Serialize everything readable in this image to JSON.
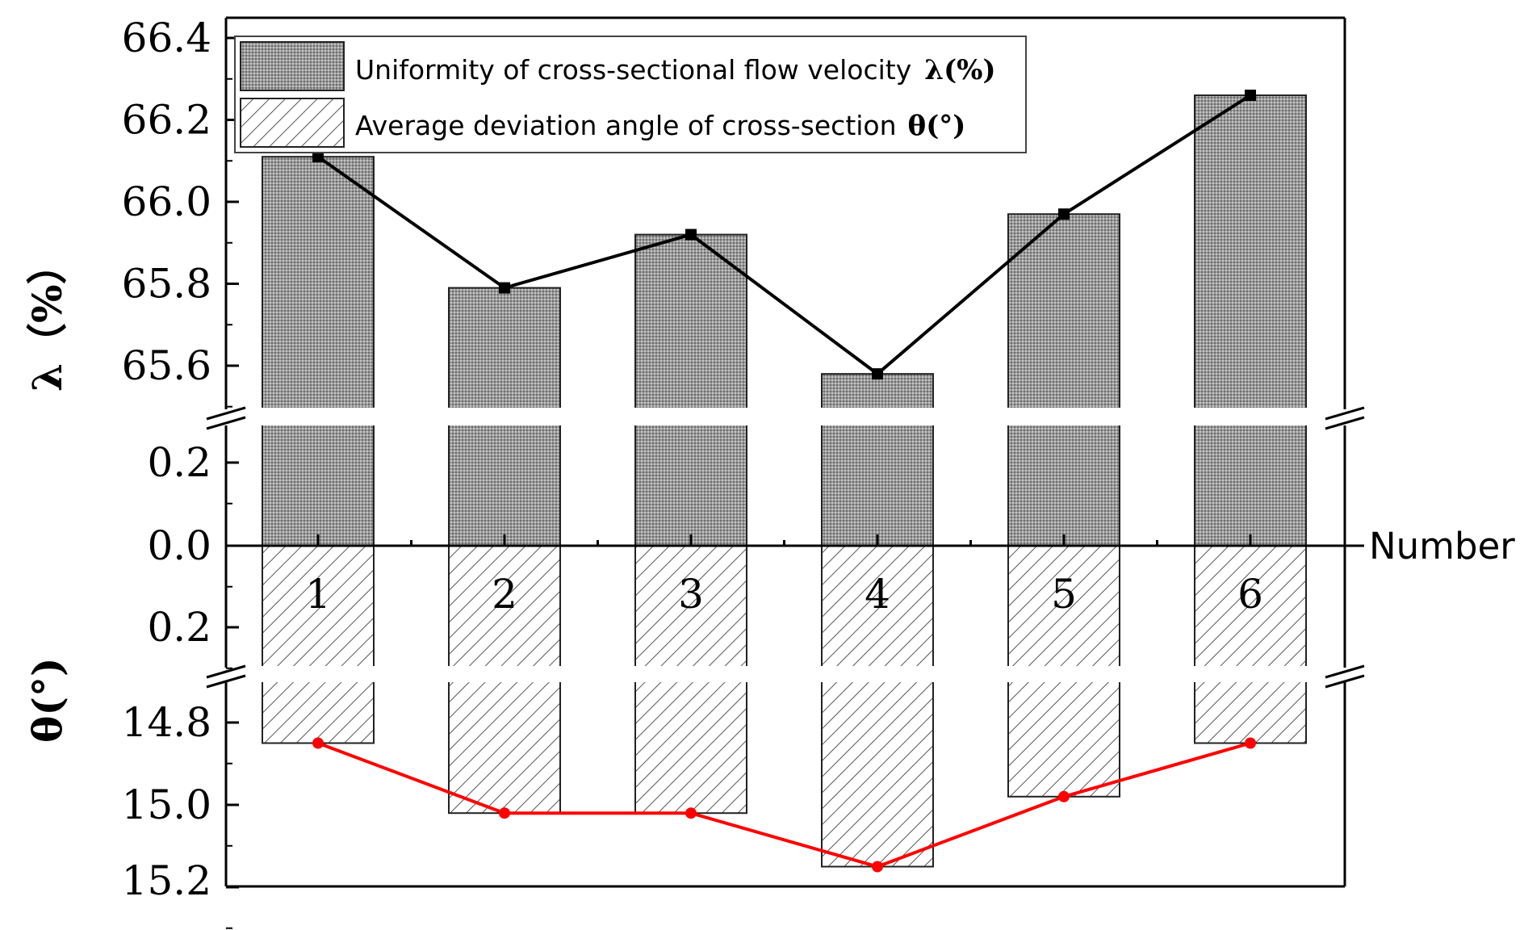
{
  "chart_data": {
    "type": "bar",
    "xlabel": "Number",
    "categories": [
      "1",
      "2",
      "3",
      "4",
      "5",
      "6"
    ],
    "series": [
      {
        "name_prefix": "Uniformity of cross-sectional flow velocity",
        "name_symbol": "λ(%)",
        "axis_label": "λ（%）",
        "values": [
          66.11,
          65.79,
          65.92,
          65.58,
          65.97,
          66.26
        ],
        "ylim": [
          65.5,
          66.4
        ],
        "ticks": [
          "66.4",
          "66.2",
          "66.0",
          "65.8",
          "65.6"
        ],
        "ticks_near_zero": [
          "0.2",
          "0.0"
        ],
        "fill": "dotted-gray",
        "line_color": "#000000"
      },
      {
        "name_prefix": "Average deviation angle of cross-section",
        "name_symbol": "θ(°)",
        "axis_label": "θ(°)",
        "values": [
          14.85,
          15.02,
          15.02,
          15.15,
          14.98,
          14.85
        ],
        "ylim": [
          14.75,
          15.2
        ],
        "ticks": [
          "0.2",
          "14.8",
          "15.0",
          "15.2"
        ],
        "fill": "diagonal-hatch",
        "line_color": "#ff0000"
      }
    ]
  }
}
